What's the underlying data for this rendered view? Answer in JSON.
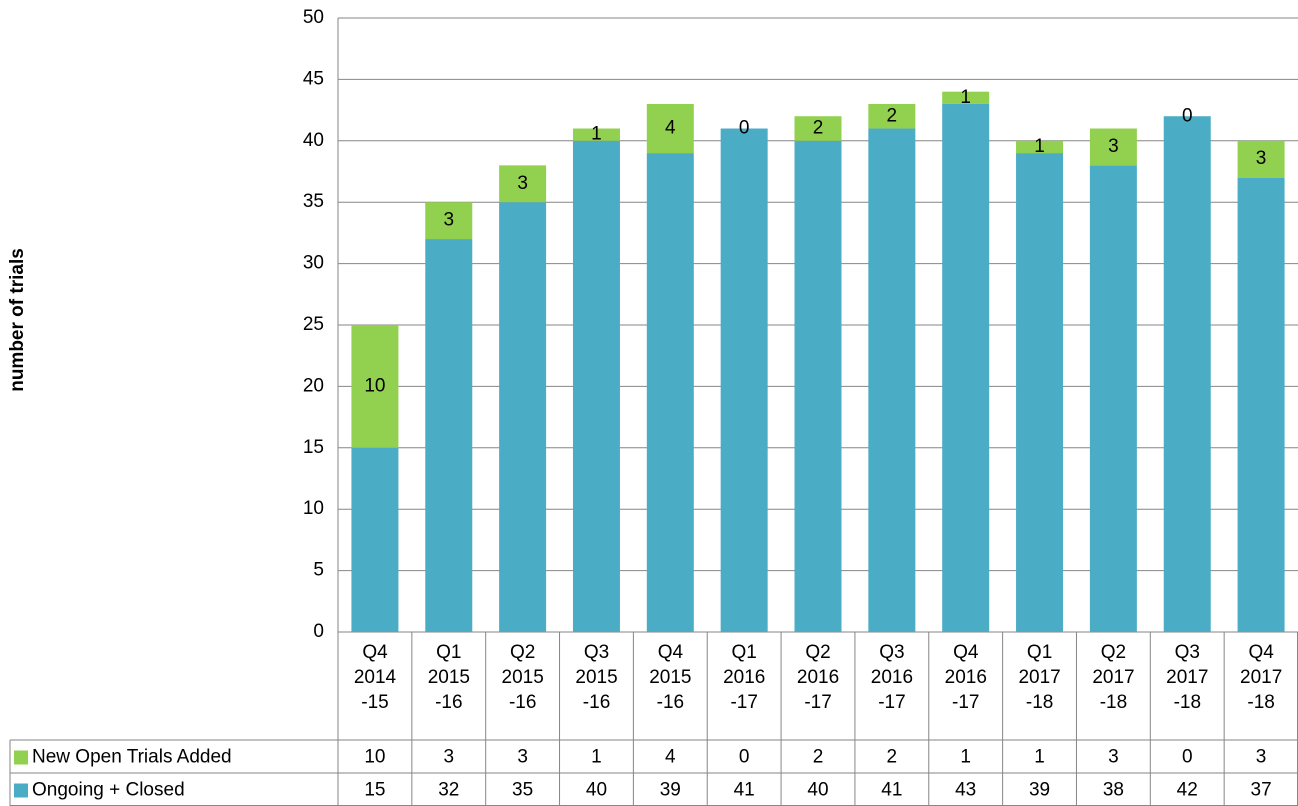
{
  "chart_data": {
    "type": "bar",
    "stacked": true,
    "y_label": "number of trials",
    "categories": [
      "Q4\n2014\n-15",
      "Q1\n2015\n-16",
      "Q2\n2015\n-16",
      "Q3\n2015\n-16",
      "Q4\n2015\n-16",
      "Q1\n2016\n-17",
      "Q2\n2016\n-17",
      "Q3\n2016\n-17",
      "Q4\n2016\n-17",
      "Q1\n2017\n-18",
      "Q2\n2017\n-18",
      "Q3\n2017\n-18",
      "Q4\n2017\n-18"
    ],
    "series": [
      {
        "name": "New Open Trials Added",
        "color": "#92d050",
        "values": [
          10,
          3,
          3,
          1,
          4,
          0,
          2,
          2,
          1,
          1,
          3,
          0,
          3
        ]
      },
      {
        "name": "Ongoing + Closed",
        "color": "#4bacc6",
        "values": [
          15,
          32,
          35,
          40,
          39,
          41,
          40,
          41,
          43,
          39,
          38,
          42,
          37
        ]
      }
    ],
    "ylim": [
      0,
      50
    ],
    "yticks": [
      0,
      5,
      10,
      15,
      20,
      25,
      30,
      35,
      40,
      45,
      50
    ],
    "grid": true,
    "data_table": true
  }
}
